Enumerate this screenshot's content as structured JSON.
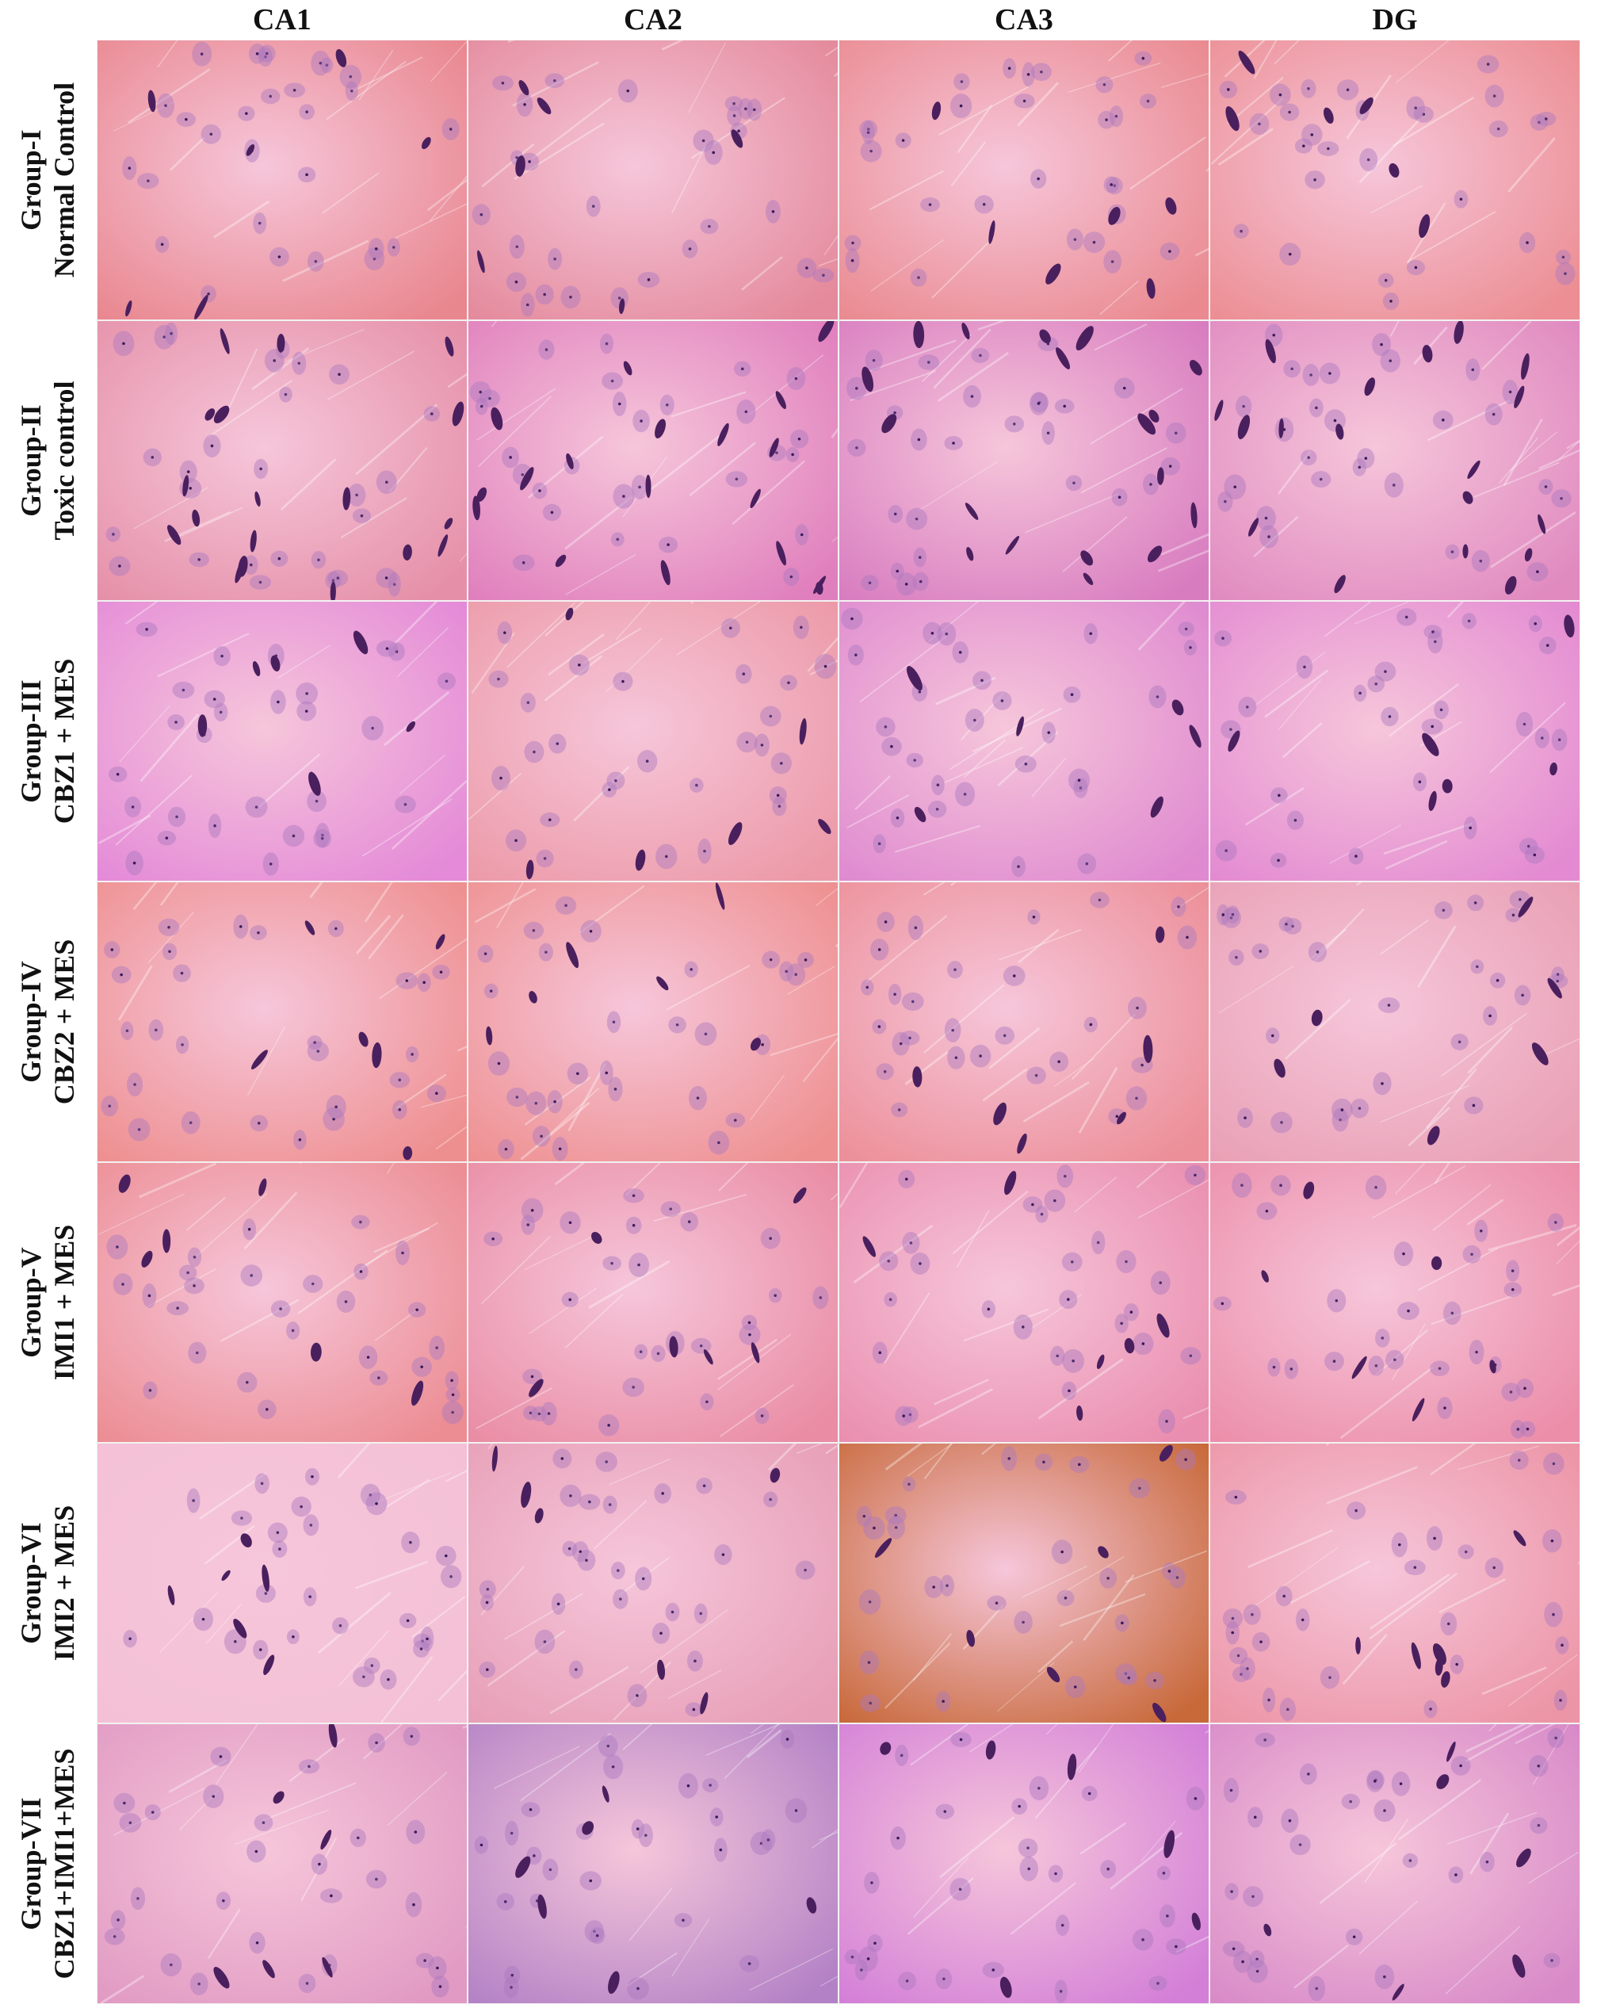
{
  "columns": [
    "CA1",
    "CA2",
    "CA3",
    "DG"
  ],
  "rows": [
    {
      "group": "Group-I",
      "treatment": "Normal Control"
    },
    {
      "group": "Group-II",
      "treatment": "Toxic control"
    },
    {
      "group": "Group-III",
      "treatment": "CBZ1 + MES"
    },
    {
      "group": "Group-IV",
      "treatment": "CBZ2 + MES"
    },
    {
      "group": "Group-V",
      "treatment": "IMI1 + MES"
    },
    {
      "group": "Group-VI",
      "treatment": "IMI2 + MES"
    },
    {
      "group": "Group-VII",
      "treatment": "CBZ1+IMI1+MES"
    }
  ],
  "colors": {
    "stain_pink": "#e9868f",
    "stain_magenta": "#d879c9",
    "nucleus_purple": "#4a2a6a",
    "stain_orange": "#c96a3a"
  }
}
